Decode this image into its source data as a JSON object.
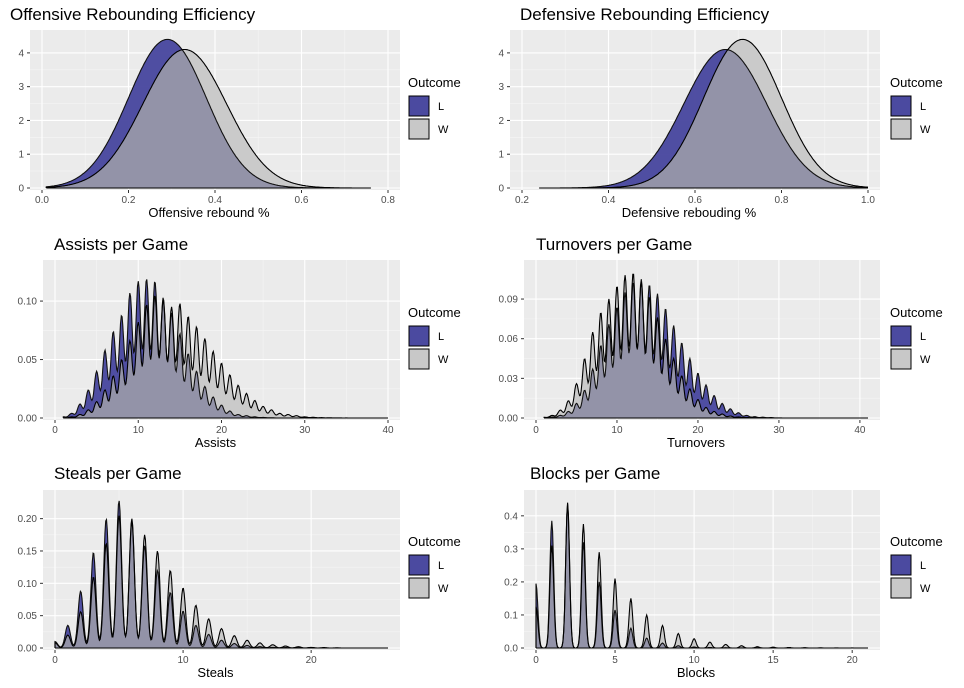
{
  "legend_title": "Outcome",
  "colors": {
    "L": "#4b4aa0",
    "W": "#c8c8c8",
    "overlap": "#9393a8",
    "panel": "#ebebeb",
    "grid": "#ffffff"
  },
  "chart_data": [
    {
      "type": "area",
      "title": "Offensive Rebounding Efficiency",
      "xlabel": "Offensive rebound %",
      "ylabel": "",
      "xlim": [
        0,
        0.8
      ],
      "ylim": [
        0,
        4.5
      ],
      "xticks": [
        0.0,
        0.2,
        0.4,
        0.6,
        0.8
      ],
      "xtick_labels": [
        "0.0",
        "0.2",
        "0.4",
        "0.6",
        "0.8"
      ],
      "yticks": [
        0,
        1,
        2,
        3,
        4
      ],
      "ytick_labels": [
        "0",
        "1",
        "2",
        "3",
        "4"
      ],
      "legend": {
        "title": "Outcome",
        "entries": [
          "L",
          "W"
        ],
        "position": "right"
      },
      "series": [
        {
          "name": "L",
          "dist": "normal",
          "mean": 0.29,
          "sd": 0.09,
          "peak": 4.4,
          "range": [
            0.01,
            0.76
          ]
        },
        {
          "name": "W",
          "dist": "normal",
          "mean": 0.33,
          "sd": 0.097,
          "peak": 4.1,
          "range": [
            0.01,
            0.76
          ]
        }
      ]
    },
    {
      "type": "area",
      "title": "Defensive Rebounding Efficiency",
      "xlabel": "Defensive rebouding %",
      "ylabel": "",
      "xlim": [
        0.2,
        1.0
      ],
      "ylim": [
        0,
        4.5
      ],
      "xticks": [
        0.2,
        0.4,
        0.6,
        0.8,
        1.0
      ],
      "xtick_labels": [
        "0.2",
        "0.4",
        "0.6",
        "0.8",
        "1.0"
      ],
      "yticks": [
        0,
        1,
        2,
        3,
        4
      ],
      "ytick_labels": [
        "0",
        "1",
        "2",
        "3",
        "4"
      ],
      "legend": {
        "title": "Outcome",
        "entries": [
          "L",
          "W"
        ],
        "position": "right"
      },
      "series": [
        {
          "name": "L",
          "dist": "normal",
          "mean": 0.67,
          "sd": 0.096,
          "peak": 4.1,
          "range": [
            0.24,
            1.0
          ]
        },
        {
          "name": "W",
          "dist": "normal",
          "mean": 0.71,
          "sd": 0.09,
          "peak": 4.4,
          "range": [
            0.24,
            1.0
          ]
        }
      ]
    },
    {
      "type": "area",
      "title": "Assists per Game",
      "xlabel": "Assists",
      "ylabel": "",
      "xlim": [
        0,
        40
      ],
      "ylim": [
        0,
        0.13
      ],
      "xticks": [
        0,
        10,
        20,
        30,
        40
      ],
      "xtick_labels": [
        "0",
        "10",
        "20",
        "30",
        "40"
      ],
      "yticks": [
        0.0,
        0.05,
        0.1
      ],
      "ytick_labels": [
        "0.00",
        "0.05",
        "0.10"
      ],
      "legend": {
        "title": "Outcome",
        "entries": [
          "L",
          "W"
        ],
        "position": "right"
      },
      "series": [
        {
          "name": "L",
          "dist": "discrete",
          "x": [
            1,
            2,
            3,
            4,
            5,
            6,
            7,
            8,
            9,
            10,
            11,
            12,
            13,
            14,
            15,
            16,
            17,
            18,
            19,
            20,
            21,
            22,
            23,
            24,
            25,
            26
          ],
          "y": [
            0.001,
            0.004,
            0.012,
            0.024,
            0.04,
            0.058,
            0.074,
            0.088,
            0.107,
            0.117,
            0.119,
            0.117,
            0.103,
            0.09,
            0.072,
            0.055,
            0.04,
            0.027,
            0.018,
            0.011,
            0.006,
            0.003,
            0.002,
            0.001,
            0.0005,
            0.0002
          ]
        },
        {
          "name": "W",
          "dist": "discrete",
          "x": [
            2,
            3,
            4,
            5,
            6,
            7,
            8,
            9,
            10,
            11,
            12,
            13,
            14,
            15,
            16,
            17,
            18,
            19,
            20,
            21,
            22,
            23,
            24,
            25,
            26,
            27,
            28,
            29,
            30,
            31,
            32,
            33,
            34,
            35
          ],
          "y": [
            0.001,
            0.003,
            0.007,
            0.014,
            0.024,
            0.036,
            0.05,
            0.066,
            0.082,
            0.097,
            0.105,
            0.101,
            0.095,
            0.098,
            0.087,
            0.078,
            0.068,
            0.057,
            0.047,
            0.037,
            0.028,
            0.021,
            0.015,
            0.01,
            0.007,
            0.004,
            0.003,
            0.002,
            0.001,
            0.0006,
            0.0003,
            0.0002,
            0.0001,
            5e-05
          ]
        }
      ],
      "wiggle": 0.3
    },
    {
      "type": "area",
      "title": "Turnovers per Game",
      "xlabel": "Turnovers",
      "ylabel": "",
      "xlim": [
        0,
        41
      ],
      "ylim": [
        0,
        0.115
      ],
      "xticks": [
        0,
        10,
        20,
        30,
        40
      ],
      "xtick_labels": [
        "0",
        "10",
        "20",
        "30",
        "40"
      ],
      "yticks": [
        0.0,
        0.03,
        0.06,
        0.09
      ],
      "ytick_labels": [
        "0.00",
        "0.03",
        "0.06",
        "0.09"
      ],
      "legend": {
        "title": "Outcome",
        "entries": [
          "L",
          "W"
        ],
        "position": "right"
      },
      "series": [
        {
          "name": "L",
          "dist": "discrete",
          "x": [
            2,
            3,
            4,
            5,
            6,
            7,
            8,
            9,
            10,
            11,
            12,
            13,
            14,
            15,
            16,
            17,
            18,
            19,
            20,
            21,
            22,
            23,
            24,
            25,
            26,
            27,
            28,
            29,
            30
          ],
          "y": [
            0.0008,
            0.002,
            0.005,
            0.011,
            0.021,
            0.037,
            0.055,
            0.071,
            0.084,
            0.095,
            0.103,
            0.105,
            0.101,
            0.094,
            0.083,
            0.07,
            0.057,
            0.045,
            0.034,
            0.025,
            0.017,
            0.011,
            0.007,
            0.004,
            0.002,
            0.001,
            0.0006,
            0.0003,
            0.0001
          ]
        },
        {
          "name": "W",
          "dist": "discrete",
          "x": [
            1,
            2,
            3,
            4,
            5,
            6,
            7,
            8,
            9,
            10,
            11,
            12,
            13,
            14,
            15,
            16,
            17,
            18,
            19,
            20,
            21,
            22,
            23,
            24,
            25,
            26,
            27,
            28,
            29,
            30
          ],
          "y": [
            0.0005,
            0.002,
            0.006,
            0.013,
            0.026,
            0.045,
            0.065,
            0.08,
            0.09,
            0.1,
            0.108,
            0.11,
            0.103,
            0.092,
            0.076,
            0.06,
            0.045,
            0.032,
            0.022,
            0.014,
            0.008,
            0.005,
            0.003,
            0.0015,
            0.0008,
            0.0004,
            0.0002,
            0.0001,
            5e-05,
            2e-05
          ]
        }
      ],
      "wiggle": 0.3
    },
    {
      "type": "area",
      "title": "Steals per Game",
      "xlabel": "Steals",
      "ylabel": "",
      "xlim": [
        0,
        26
      ],
      "ylim": [
        0,
        0.235
      ],
      "xticks": [
        0,
        10,
        20
      ],
      "xtick_labels": [
        "0",
        "10",
        "20"
      ],
      "yticks": [
        0.0,
        0.05,
        0.1,
        0.15,
        0.2
      ],
      "ytick_labels": [
        "0.00",
        "0.05",
        "0.10",
        "0.15",
        "0.20"
      ],
      "legend": {
        "title": "Outcome",
        "entries": [
          "L",
          "W"
        ],
        "position": "right"
      },
      "series": [
        {
          "name": "L",
          "dist": "discrete",
          "x": [
            0,
            1,
            2,
            3,
            4,
            5,
            6,
            7,
            8,
            9,
            10,
            11,
            12,
            13,
            14,
            15,
            16,
            17,
            18,
            19,
            20
          ],
          "y": [
            0.01,
            0.035,
            0.088,
            0.148,
            0.2,
            0.228,
            0.195,
            0.158,
            0.12,
            0.086,
            0.057,
            0.035,
            0.021,
            0.012,
            0.007,
            0.004,
            0.002,
            0.001,
            0.0006,
            0.0003,
            0.0002
          ]
        },
        {
          "name": "W",
          "dist": "discrete",
          "x": [
            0,
            1,
            2,
            3,
            4,
            5,
            6,
            7,
            8,
            9,
            10,
            11,
            12,
            13,
            14,
            15,
            16,
            17,
            18,
            19,
            20,
            21,
            22
          ],
          "y": [
            0.008,
            0.02,
            0.056,
            0.11,
            0.162,
            0.205,
            0.2,
            0.175,
            0.15,
            0.12,
            0.093,
            0.066,
            0.045,
            0.03,
            0.019,
            0.012,
            0.008,
            0.005,
            0.003,
            0.002,
            0.001,
            0.0006,
            0.0003
          ]
        }
      ],
      "wiggle": 0.2
    },
    {
      "type": "area",
      "title": "Blocks per Game",
      "xlabel": "Blocks",
      "ylabel": "",
      "xlim": [
        0,
        21
      ],
      "ylim": [
        0,
        0.46
      ],
      "xticks": [
        0,
        5,
        10,
        15,
        20
      ],
      "xtick_labels": [
        "0",
        "5",
        "10",
        "15",
        "20"
      ],
      "yticks": [
        0.0,
        0.1,
        0.2,
        0.3,
        0.4
      ],
      "ytick_labels": [
        "0.0",
        "0.1",
        "0.2",
        "0.3",
        "0.4"
      ],
      "legend": {
        "title": "Outcome",
        "entries": [
          "L",
          "W"
        ],
        "position": "right"
      },
      "series": [
        {
          "name": "L",
          "dist": "discrete",
          "x": [
            0,
            1,
            2,
            3,
            4,
            5,
            6,
            7,
            8,
            9,
            10,
            11,
            12,
            13,
            14,
            15
          ],
          "y": [
            0.195,
            0.385,
            0.435,
            0.32,
            0.2,
            0.115,
            0.06,
            0.03,
            0.015,
            0.007,
            0.003,
            0.0015,
            0.0008,
            0.0004,
            0.0002,
            0.0001
          ]
        },
        {
          "name": "W",
          "dist": "discrete",
          "x": [
            0,
            1,
            2,
            3,
            4,
            5,
            6,
            7,
            8,
            9,
            10,
            11,
            12,
            13,
            14,
            15,
            16,
            17,
            18,
            19,
            20
          ],
          "y": [
            0.125,
            0.31,
            0.44,
            0.375,
            0.29,
            0.21,
            0.15,
            0.1,
            0.068,
            0.044,
            0.028,
            0.018,
            0.011,
            0.007,
            0.004,
            0.0025,
            0.0015,
            0.0009,
            0.0005,
            0.0003,
            0.0002
          ]
        }
      ],
      "wiggle": 0.12
    }
  ]
}
